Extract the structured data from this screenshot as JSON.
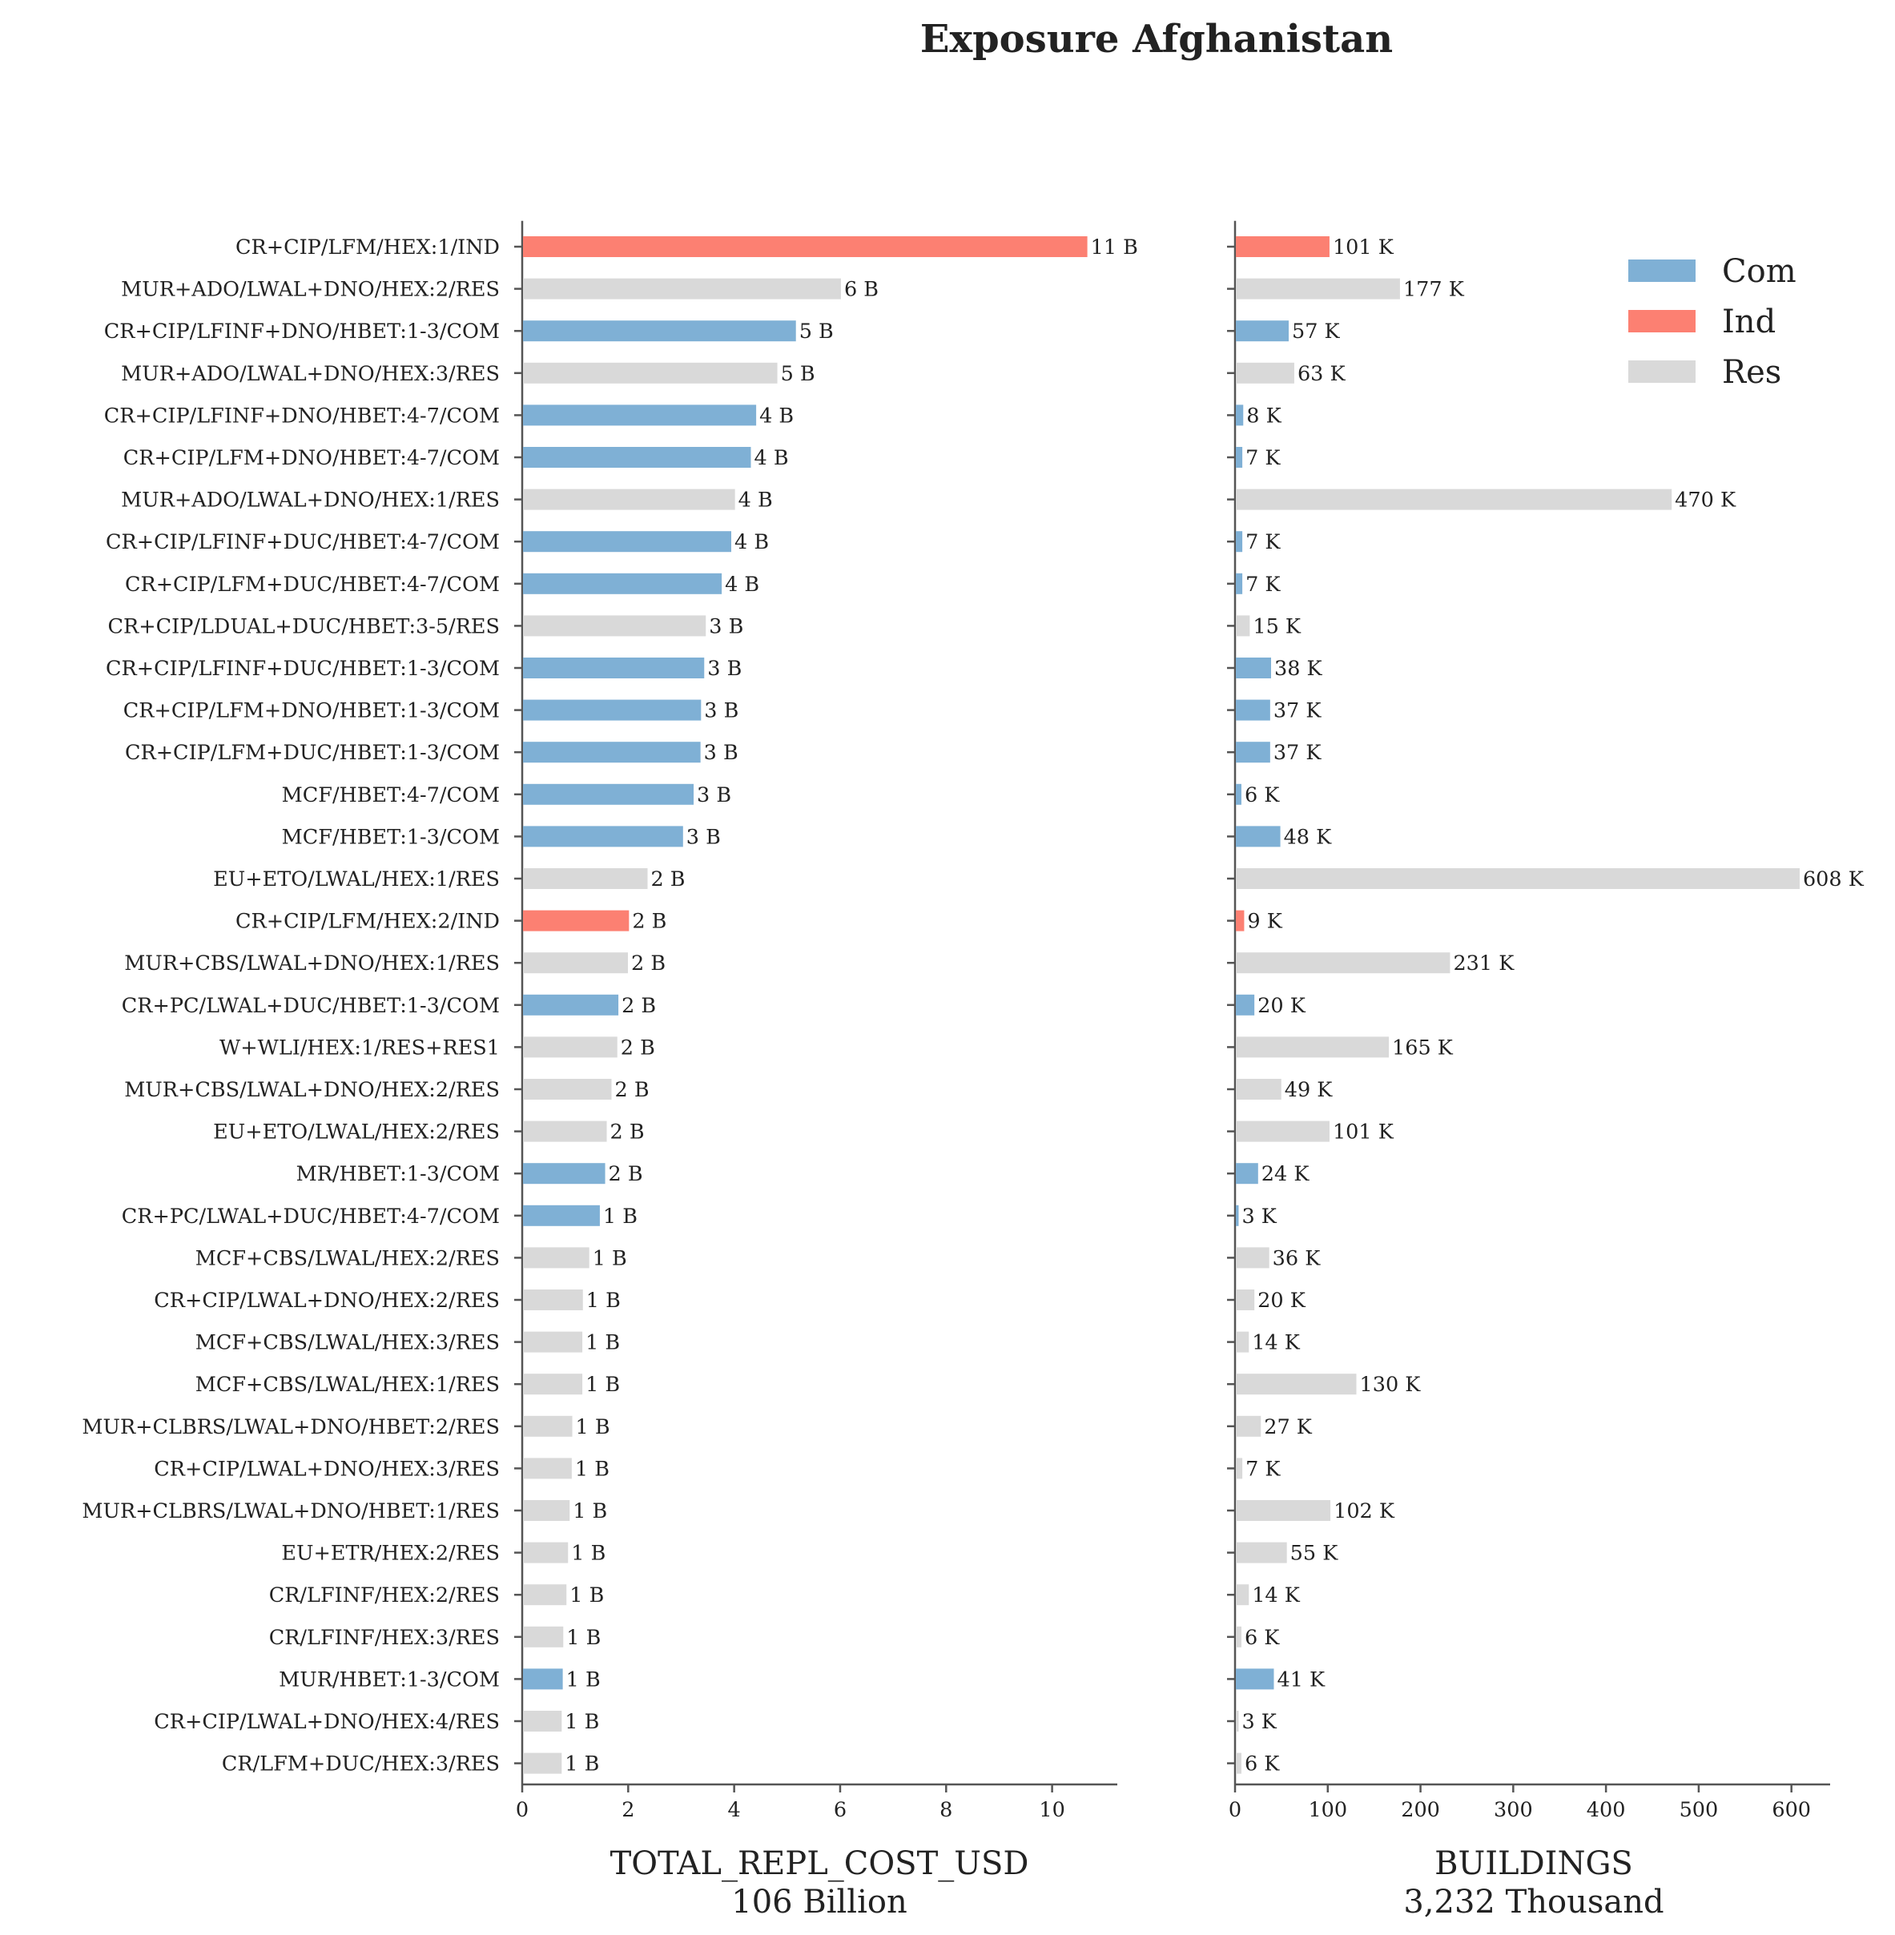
{
  "chart_data": {
    "type": "bar",
    "orientation": "horizontal",
    "title": "Exposure Afghanistan",
    "categories": [
      "CR+CIP/LFM/HEX:1/IND",
      "MUR+ADO/LWAL+DNO/HEX:2/RES",
      "CR+CIP/LFINF+DNO/HBET:1-3/COM",
      "MUR+ADO/LWAL+DNO/HEX:3/RES",
      "CR+CIP/LFINF+DNO/HBET:4-7/COM",
      "CR+CIP/LFM+DNO/HBET:4-7/COM",
      "MUR+ADO/LWAL+DNO/HEX:1/RES",
      "CR+CIP/LFINF+DUC/HBET:4-7/COM",
      "CR+CIP/LFM+DUC/HBET:4-7/COM",
      "CR+CIP/LDUAL+DUC/HBET:3-5/RES",
      "CR+CIP/LFINF+DUC/HBET:1-3/COM",
      "CR+CIP/LFM+DNO/HBET:1-3/COM",
      "CR+CIP/LFM+DUC/HBET:1-3/COM",
      "MCF/HBET:4-7/COM",
      "MCF/HBET:1-3/COM",
      "EU+ETO/LWAL/HEX:1/RES",
      "CR+CIP/LFM/HEX:2/IND",
      "MUR+CBS/LWAL+DNO/HEX:1/RES",
      "CR+PC/LWAL+DUC/HBET:1-3/COM",
      "W+WLI/HEX:1/RES+RES1",
      "MUR+CBS/LWAL+DNO/HEX:2/RES",
      "EU+ETO/LWAL/HEX:2/RES",
      "MR/HBET:1-3/COM",
      "CR+PC/LWAL+DUC/HBET:4-7/COM",
      "MCF+CBS/LWAL/HEX:2/RES",
      "CR+CIP/LWAL+DNO/HEX:2/RES",
      "MCF+CBS/LWAL/HEX:3/RES",
      "MCF+CBS/LWAL/HEX:1/RES",
      "MUR+CLBRS/LWAL+DNO/HBET:2/RES",
      "CR+CIP/LWAL+DNO/HEX:3/RES",
      "MUR+CLBRS/LWAL+DNO/HBET:1/RES",
      "EU+ETR/HEX:2/RES",
      "CR/LFINF/HEX:2/RES",
      "CR/LFINF/HEX:3/RES",
      "MUR/HBET:1-3/COM",
      "CR+CIP/LWAL+DNO/HEX:4/RES",
      "CR/LFM+DUC/HEX:3/RES"
    ],
    "occupancy": [
      "Ind",
      "Res",
      "Com",
      "Res",
      "Com",
      "Com",
      "Res",
      "Com",
      "Com",
      "Res",
      "Com",
      "Com",
      "Com",
      "Com",
      "Com",
      "Res",
      "Ind",
      "Res",
      "Com",
      "Res",
      "Res",
      "Res",
      "Com",
      "Com",
      "Res",
      "Res",
      "Res",
      "Res",
      "Res",
      "Res",
      "Res",
      "Res",
      "Res",
      "Res",
      "Com",
      "Res",
      "Res"
    ],
    "series": [
      {
        "name": "TOTAL_REPL_COST_USD",
        "values": [
          10.65,
          6.0,
          5.15,
          4.8,
          4.4,
          4.3,
          4.0,
          3.93,
          3.75,
          3.45,
          3.42,
          3.36,
          3.35,
          3.22,
          3.02,
          2.35,
          2.0,
          1.98,
          1.8,
          1.78,
          1.67,
          1.58,
          1.55,
          1.45,
          1.25,
          1.13,
          1.12,
          1.12,
          0.93,
          0.92,
          0.88,
          0.85,
          0.82,
          0.76,
          0.75,
          0.73,
          0.73
        ],
        "labels": [
          "11 B",
          "6 B",
          "5 B",
          "5 B",
          "4 B",
          "4 B",
          "4 B",
          "4 B",
          "4 B",
          "3 B",
          "3 B",
          "3 B",
          "3 B",
          "3 B",
          "3 B",
          "2 B",
          "2 B",
          "2 B",
          "2 B",
          "2 B",
          "2 B",
          "2 B",
          "2 B",
          "1 B",
          "1 B",
          "1 B",
          "1 B",
          "1 B",
          "1 B",
          "1 B",
          "1 B",
          "1 B",
          "1 B",
          "1 B",
          "1 B",
          "1 B",
          "1 B"
        ],
        "xlabel": "TOTAL_REPL_COST_USD",
        "xlabel_sub": "106 Billion",
        "xlim": [
          0,
          11.2
        ],
        "xticks": [
          0,
          2,
          4,
          6,
          8,
          10
        ]
      },
      {
        "name": "BUILDINGS",
        "values": [
          101,
          177,
          57,
          63,
          8,
          7,
          470,
          7,
          7,
          15,
          38,
          37,
          37,
          6,
          48,
          608,
          9,
          231,
          20,
          165,
          49,
          101,
          24,
          3,
          36,
          20,
          14,
          130,
          27,
          7,
          102,
          55,
          14,
          6,
          41,
          3,
          6
        ],
        "labels": [
          "101 K",
          "177 K",
          "57 K",
          "63 K",
          "8 K",
          "7 K",
          "470 K",
          "7 K",
          "7 K",
          "15 K",
          "38 K",
          "37 K",
          "37 K",
          "6 K",
          "48 K",
          "608 K",
          "9 K",
          "231 K",
          "20 K",
          "165 K",
          "49 K",
          "101 K",
          "24 K",
          "3 K",
          "36 K",
          "20 K",
          "14 K",
          "130 K",
          "27 K",
          "7 K",
          "102 K",
          "55 K",
          "14 K",
          "6 K",
          "41 K",
          "3 K",
          "6 K"
        ],
        "xlabel": "BUILDINGS",
        "xlabel_sub": "3,232 Thousand",
        "xlim": [
          0,
          640
        ],
        "xticks": [
          0,
          100,
          200,
          300,
          400,
          500,
          600
        ]
      }
    ],
    "legend": {
      "position": "top-right",
      "entries": [
        {
          "name": "Com",
          "color": "#7fb0d5"
        },
        {
          "name": "Ind",
          "color": "#fc8072"
        },
        {
          "name": "Res",
          "color": "#d9d9d9"
        }
      ]
    },
    "colors": {
      "Com": "#7fb0d5",
      "Ind": "#fc8072",
      "Res": "#d9d9d9"
    },
    "grid": false
  }
}
